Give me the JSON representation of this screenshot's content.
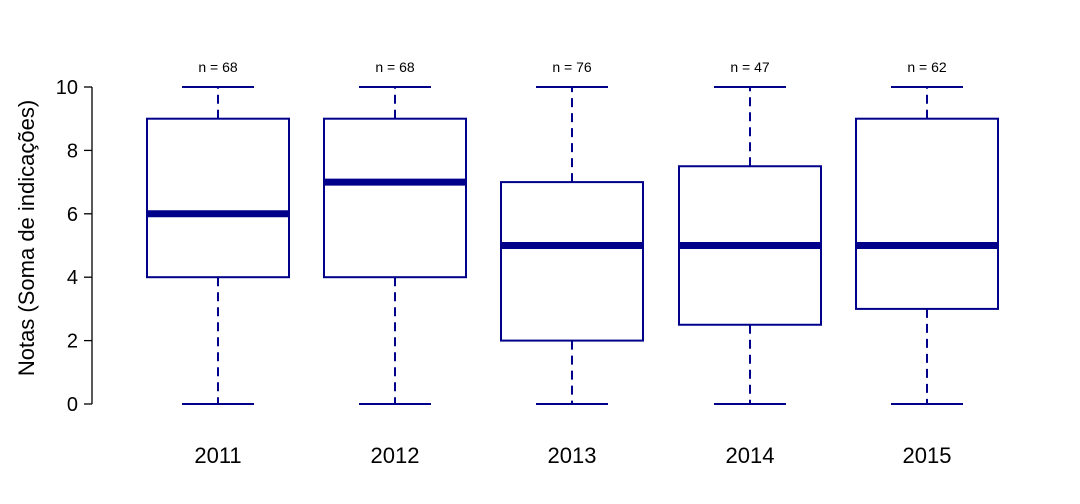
{
  "chart_data": {
    "type": "boxplot",
    "title": "",
    "xlabel": "",
    "ylabel": "Notas (Soma de indicações)",
    "ylim": [
      0,
      10
    ],
    "yticks": [
      0,
      2,
      4,
      6,
      8,
      10
    ],
    "color": "#00008B",
    "categories": [
      "2011",
      "2012",
      "2013",
      "2014",
      "2015"
    ],
    "n_labels": [
      "n = 68",
      "n = 68",
      "n = 76",
      "n = 47",
      "n = 62"
    ],
    "boxes": [
      {
        "min": 0,
        "q1": 4,
        "median": 6,
        "q3": 9,
        "max": 10
      },
      {
        "min": 0,
        "q1": 4,
        "median": 7,
        "q3": 9,
        "max": 10
      },
      {
        "min": 0,
        "q1": 2,
        "median": 5,
        "q3": 7,
        "max": 10
      },
      {
        "min": 0,
        "q1": 2.5,
        "median": 5,
        "q3": 7.5,
        "max": 10
      },
      {
        "min": 0,
        "q1": 3,
        "median": 5,
        "q3": 9,
        "max": 10
      }
    ]
  }
}
